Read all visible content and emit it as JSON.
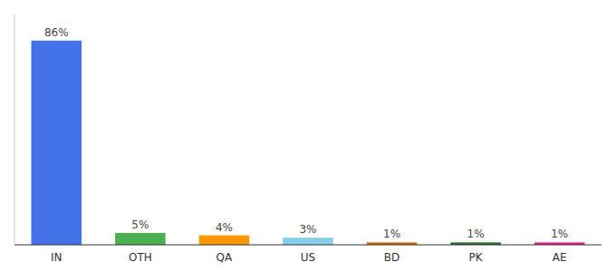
{
  "chart_data": {
    "type": "bar",
    "categories": [
      "IN",
      "OTH",
      "QA",
      "US",
      "BD",
      "PK",
      "AE"
    ],
    "values": [
      86,
      5,
      4,
      3,
      1,
      1,
      1
    ],
    "value_labels": [
      "86%",
      "5%",
      "4%",
      "3%",
      "1%",
      "1%",
      "1%"
    ],
    "colors": [
      "#4472e8",
      "#4caf50",
      "#ff9800",
      "#87ceeb",
      "#cc6600",
      "#2d6a2d",
      "#e91e8c"
    ],
    "ylim": [
      0,
      97
    ],
    "data_labels": true,
    "grid": false,
    "tick_labels": "x"
  }
}
